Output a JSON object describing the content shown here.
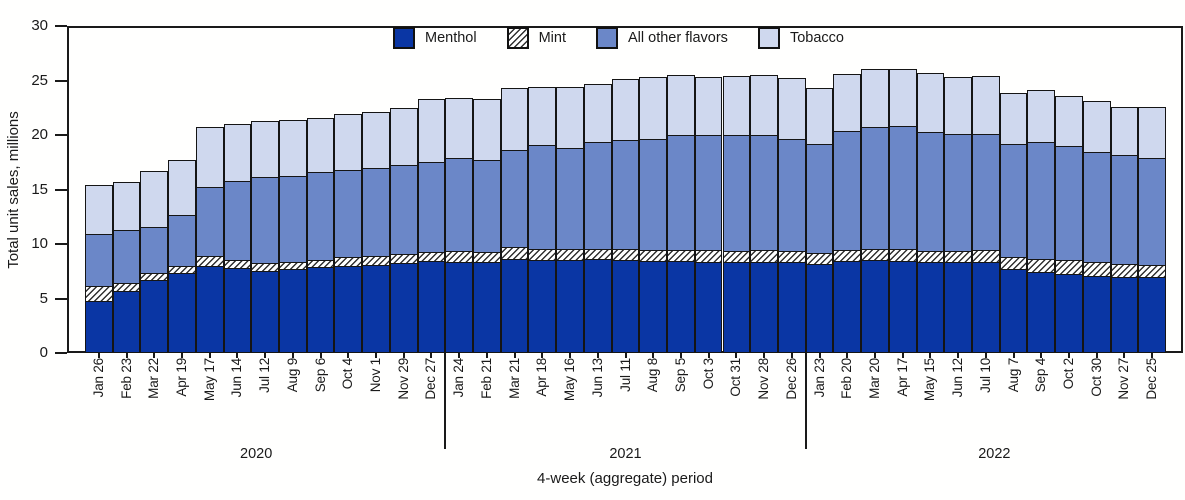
{
  "figure": {
    "background": "#ffffff",
    "axis_color": "#1a1a1a",
    "ylabel": "Total unit sales, millions",
    "xlabel": "4-week (aggregate) period"
  },
  "legend": [
    {
      "label": "Menthol",
      "color": "#0a36a4",
      "pattern": "solid"
    },
    {
      "label": "Mint",
      "color": "#ffffff",
      "pattern": "hatch"
    },
    {
      "label": "All other flavors",
      "color": "#6b87c8",
      "pattern": "solid"
    },
    {
      "label": "Tobacco",
      "color": "#cfd8ee",
      "pattern": "solid"
    }
  ],
  "chart_data": {
    "type": "bar",
    "stacked": true,
    "title": "",
    "xlabel": "4-week (aggregate) period",
    "ylabel": "Total unit sales, millions",
    "ylim": [
      0,
      30
    ],
    "yticks": [
      0,
      5,
      10,
      15,
      20,
      25,
      30
    ],
    "grid": false,
    "legend_position": "top-center-inside",
    "categories": [
      "Jan 26",
      "Feb 23",
      "Mar 22",
      "Apr 19",
      "May 17",
      "Jun 14",
      "Jul 12",
      "Aug 9",
      "Sep 6",
      "Oct 4",
      "Nov 1",
      "Nov 29",
      "Dec 27",
      "Jan 24",
      "Feb 21",
      "Mar 21",
      "Apr 18",
      "May 16",
      "Jun 13",
      "Jul 11",
      "Aug 8",
      "Sep 5",
      "Oct 3",
      "Oct 31",
      "Nov 28",
      "Dec 26",
      "Jan 23",
      "Feb 20",
      "Mar 20",
      "Apr 17",
      "May 15",
      "Jun 12",
      "Jul 10",
      "Aug 7",
      "Sep 4",
      "Oct 2",
      "Oct 30",
      "Nov 27",
      "Dec 25"
    ],
    "year_groups": [
      {
        "label": "2020",
        "count": 13
      },
      {
        "label": "2021",
        "count": 13
      },
      {
        "label": "2022",
        "count": 13
      }
    ],
    "series": [
      {
        "name": "Menthol",
        "color": "#0a36a4",
        "pattern": "solid",
        "values": [
          4.8,
          5.7,
          6.7,
          7.4,
          8.0,
          7.8,
          7.6,
          7.7,
          7.9,
          8.0,
          8.1,
          8.3,
          8.5,
          8.4,
          8.35,
          8.7,
          8.6,
          8.6,
          8.7,
          8.6,
          8.5,
          8.5,
          8.4,
          8.35,
          8.4,
          8.4,
          8.2,
          8.5,
          8.6,
          8.5,
          8.4,
          8.35,
          8.4,
          7.7,
          7.5,
          7.3,
          7.1,
          7.0,
          7.0
        ]
      },
      {
        "name": "Mint",
        "color": "#ffffff",
        "pattern": "hatch",
        "values": [
          1.4,
          0.8,
          0.7,
          0.6,
          0.9,
          0.8,
          0.7,
          0.7,
          0.7,
          0.8,
          0.8,
          0.8,
          0.8,
          1.0,
          0.95,
          1.1,
          1.0,
          1.0,
          0.9,
          1.0,
          1.0,
          1.0,
          1.1,
          1.05,
          1.1,
          1.0,
          1.0,
          1.0,
          1.0,
          1.1,
          1.0,
          1.05,
          1.1,
          1.15,
          1.2,
          1.25,
          1.3,
          1.2,
          1.1
        ]
      },
      {
        "name": "All other flavors",
        "color": "#6b87c8",
        "pattern": "solid",
        "values": [
          4.8,
          4.8,
          4.2,
          4.7,
          6.4,
          7.2,
          7.9,
          7.9,
          8.0,
          8.0,
          8.1,
          8.2,
          8.3,
          8.5,
          8.4,
          8.9,
          9.5,
          9.2,
          9.8,
          10.0,
          10.2,
          10.5,
          10.5,
          10.6,
          10.5,
          10.3,
          10.0,
          10.9,
          11.2,
          11.3,
          10.95,
          10.7,
          10.6,
          10.35,
          10.7,
          10.45,
          10.1,
          10.0,
          9.8
        ]
      },
      {
        "name": "Tobacco",
        "color": "#cfd8ee",
        "pattern": "solid",
        "values": [
          4.4,
          4.4,
          5.1,
          5.0,
          5.4,
          5.2,
          5.1,
          5.1,
          5.0,
          5.1,
          5.1,
          5.2,
          5.7,
          5.5,
          5.6,
          5.6,
          5.3,
          5.6,
          5.3,
          5.5,
          5.6,
          5.5,
          5.3,
          5.4,
          5.5,
          5.5,
          5.1,
          5.2,
          5.3,
          5.2,
          5.3,
          5.2,
          5.3,
          4.65,
          4.7,
          4.6,
          4.6,
          4.4,
          4.7
        ]
      }
    ]
  }
}
